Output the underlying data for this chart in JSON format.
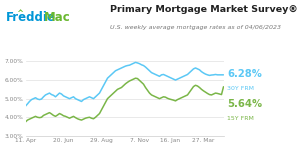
{
  "title": "Primary Mortgage Market Survey®",
  "subtitle": "U.S. weekly average mortgage rates as of 04/06/2023",
  "label_30y": "6.28%",
  "label_30y_sub": "30Y FRM",
  "label_15y": "5.64%",
  "label_15y_sub": "15Y FRM",
  "color_30y": "#5bc8f5",
  "color_15y": "#7ab648",
  "color_freddie_blue": "#0096d6",
  "color_freddie_green": "#6ab830",
  "background": "#ffffff",
  "grid_color": "#e0e0e0",
  "tick_color": "#888888",
  "ylim": [
    3.0,
    7.5
  ],
  "yticks": [
    3.0,
    4.0,
    5.0,
    6.0,
    7.0
  ],
  "xtick_labels": [
    "11. Apr",
    "20. Jun",
    "29. Aug",
    "7. Nov",
    "16. Jan",
    "27. Mar"
  ],
  "y_30y": [
    4.6,
    4.72,
    4.85,
    4.95,
    5.0,
    5.05,
    4.98,
    4.95,
    4.98,
    5.1,
    5.2,
    5.25,
    5.3,
    5.22,
    5.18,
    5.1,
    5.2,
    5.3,
    5.25,
    5.15,
    5.1,
    5.05,
    5.0,
    5.05,
    5.1,
    5.0,
    4.95,
    4.9,
    4.85,
    4.95,
    5.0,
    5.05,
    5.1,
    5.05,
    5.0,
    5.1,
    5.2,
    5.3,
    5.5,
    5.7,
    5.9,
    6.1,
    6.2,
    6.3,
    6.4,
    6.5,
    6.55,
    6.6,
    6.65,
    6.7,
    6.75,
    6.78,
    6.8,
    6.85,
    6.9,
    6.95,
    6.92,
    6.88,
    6.82,
    6.78,
    6.7,
    6.6,
    6.5,
    6.4,
    6.35,
    6.3,
    6.25,
    6.2,
    6.28,
    6.3,
    6.25,
    6.2,
    6.15,
    6.1,
    6.05,
    6.0,
    6.05,
    6.1,
    6.15,
    6.2,
    6.25,
    6.3,
    6.4,
    6.5,
    6.6,
    6.65,
    6.6,
    6.55,
    6.45,
    6.38,
    6.32,
    6.28,
    6.25,
    6.27,
    6.28,
    6.3,
    6.28,
    6.28,
    6.28,
    6.28
  ],
  "y_15y": [
    3.75,
    3.85,
    3.9,
    3.95,
    4.0,
    4.05,
    4.0,
    3.98,
    4.0,
    4.1,
    4.15,
    4.2,
    4.25,
    4.18,
    4.1,
    4.05,
    4.12,
    4.2,
    4.15,
    4.08,
    4.05,
    4.0,
    3.95,
    4.0,
    4.05,
    3.98,
    3.92,
    3.88,
    3.85,
    3.9,
    3.95,
    3.98,
    4.0,
    3.95,
    3.92,
    4.0,
    4.1,
    4.2,
    4.4,
    4.6,
    4.8,
    5.0,
    5.1,
    5.2,
    5.3,
    5.4,
    5.5,
    5.55,
    5.6,
    5.7,
    5.8,
    5.88,
    5.95,
    6.0,
    6.05,
    6.1,
    6.08,
    5.98,
    5.88,
    5.78,
    5.6,
    5.45,
    5.3,
    5.2,
    5.15,
    5.1,
    5.05,
    5.0,
    5.05,
    5.1,
    5.08,
    5.02,
    4.98,
    4.95,
    4.92,
    4.88,
    4.95,
    5.0,
    5.05,
    5.1,
    5.15,
    5.2,
    5.35,
    5.5,
    5.65,
    5.72,
    5.68,
    5.6,
    5.5,
    5.42,
    5.35,
    5.28,
    5.22,
    5.2,
    5.25,
    5.3,
    5.28,
    5.25,
    5.22,
    5.64
  ]
}
